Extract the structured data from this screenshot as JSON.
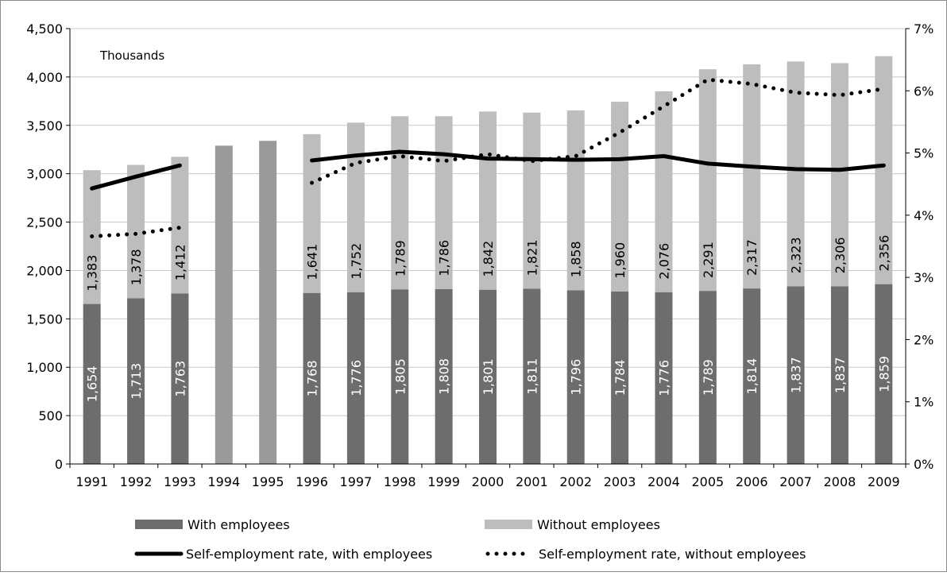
{
  "chart_data": {
    "type": "bar",
    "title": "",
    "xlabel": "",
    "ylabel": "",
    "annotation": "Thousands",
    "categories": [
      "1991",
      "1992",
      "1993",
      "1994",
      "1995",
      "1996",
      "1997",
      "1998",
      "1999",
      "2000",
      "2001",
      "2002",
      "2003",
      "2004",
      "2005",
      "2006",
      "2007",
      "2008",
      "2009"
    ],
    "ylim": [
      0,
      4500
    ],
    "yticks": [
      "0",
      "500",
      "1,000",
      "1,500",
      "2,000",
      "2,500",
      "3,000",
      "3,500",
      "4,000",
      "4,500"
    ],
    "y2lim": [
      0,
      7
    ],
    "y2ticks": [
      "0%",
      "1%",
      "2%",
      "3%",
      "4%",
      "5%",
      "6%",
      "7%"
    ],
    "legend_position": "bottom",
    "colors": {
      "with_employees": "#6d6d6d",
      "without_employees": "#bdbdbd",
      "total_only": "#9a9a9a",
      "line": "#000000",
      "grid": "#c8c8c8",
      "text": "#000000"
    },
    "series": [
      {
        "name": "With employees",
        "kind": "bar",
        "values": [
          1654,
          1713,
          1763,
          null,
          null,
          1768,
          1776,
          1805,
          1808,
          1801,
          1811,
          1796,
          1784,
          1776,
          1789,
          1814,
          1837,
          1837,
          1859
        ],
        "labels": [
          "1,654",
          "1,713",
          "1,763",
          "",
          "",
          "1,768",
          "1,776",
          "1,805",
          "1,808",
          "1,801",
          "1,811",
          "1,796",
          "1,784",
          "1,776",
          "1,789",
          "1,814",
          "1,837",
          "1,837",
          "1,859"
        ]
      },
      {
        "name": "Without employees",
        "kind": "bar",
        "values": [
          1383,
          1378,
          1412,
          null,
          null,
          1641,
          1752,
          1789,
          1786,
          1842,
          1821,
          1858,
          1960,
          2076,
          2291,
          2317,
          2323,
          2306,
          2356
        ],
        "labels": [
          "1,383",
          "1,378",
          "1,412",
          "",
          "",
          "1,641",
          "1,752",
          "1,789",
          "1,786",
          "1,842",
          "1,821",
          "1,858",
          "1,960",
          "2,076",
          "2,291",
          "2,317",
          "2,323",
          "2,306",
          "2,356"
        ]
      },
      {
        "name": "",
        "kind": "bar-total",
        "values": [
          null,
          null,
          null,
          3290,
          3340,
          null,
          null,
          null,
          null,
          null,
          null,
          null,
          null,
          null,
          null,
          null,
          null,
          null,
          null
        ]
      },
      {
        "name": "Self-employment rate, with employees",
        "kind": "line-solid",
        "axis": "right",
        "values": [
          4.43,
          4.62,
          4.8,
          null,
          null,
          4.88,
          4.96,
          5.02,
          4.98,
          4.91,
          4.9,
          4.89,
          4.9,
          4.95,
          4.83,
          4.78,
          4.74,
          4.73,
          4.8
        ]
      },
      {
        "name": "Self-employment rate, without employees",
        "kind": "line-dotted",
        "axis": "right",
        "values": [
          3.66,
          3.7,
          3.8,
          null,
          null,
          4.52,
          4.84,
          4.95,
          4.87,
          4.98,
          4.87,
          4.95,
          5.33,
          5.75,
          6.18,
          6.11,
          5.97,
          5.93,
          6.03
        ]
      }
    ]
  }
}
